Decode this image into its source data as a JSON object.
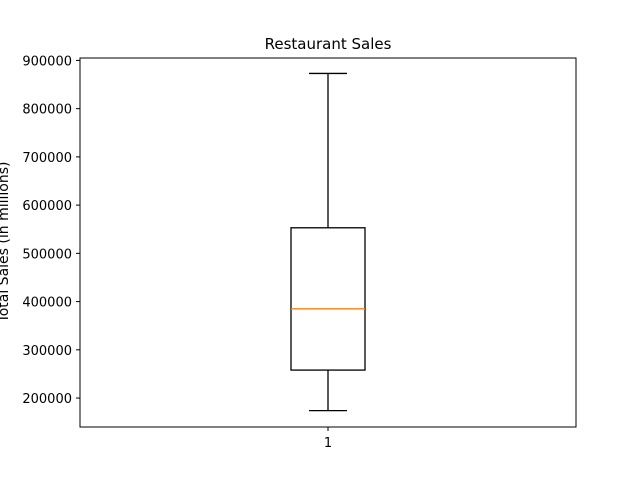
{
  "chart_data": {
    "type": "box",
    "title": "Restaurant Sales",
    "xlabel": "",
    "ylabel": "Total Sales (in millions)",
    "categories": [
      "1"
    ],
    "ylim": [
      140000,
      905000
    ],
    "yticks": [
      200000,
      300000,
      400000,
      500000,
      600000,
      700000,
      800000,
      900000
    ],
    "ytick_labels": [
      "200000",
      "300000",
      "400000",
      "500000",
      "600000",
      "700000",
      "800000",
      "900000"
    ],
    "grid": false,
    "boxes": [
      {
        "category": "1",
        "whisker_low": 174000,
        "q1": 258000,
        "median": 385000,
        "q3": 553000,
        "whisker_high": 873000
      }
    ],
    "colors": {
      "box": "#000000",
      "median": "#ff7f0e",
      "axes": "#000000"
    }
  }
}
